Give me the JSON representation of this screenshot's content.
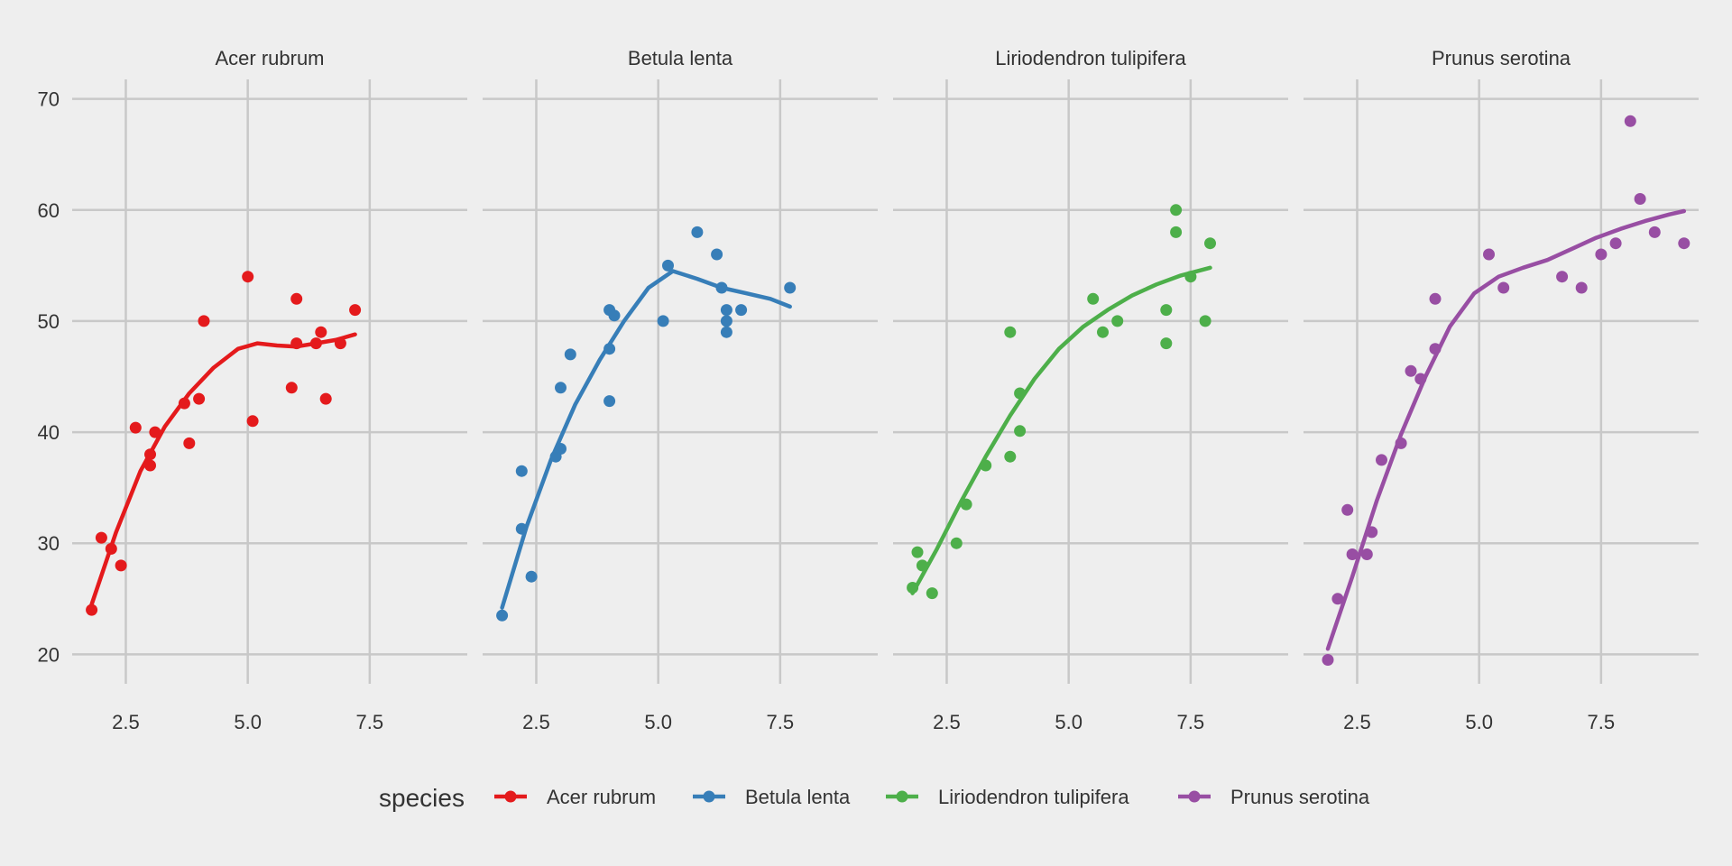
{
  "chart_data": {
    "type": "scatter",
    "facet_by": "species",
    "ylim": [
      18,
      72
    ],
    "xlim": [
      1.4,
      9.5
    ],
    "x_ticks": [
      "2.5",
      "5.0",
      "7.5"
    ],
    "y_ticks": [
      "20",
      "30",
      "40",
      "50",
      "60",
      "70"
    ],
    "grid": true,
    "legend": {
      "title": "species",
      "position": "bottom"
    },
    "series": [
      {
        "name": "Acer rubrum",
        "color": "#e41a1c",
        "points": [
          [
            1.8,
            24
          ],
          [
            2.0,
            30.5
          ],
          [
            2.2,
            29.5
          ],
          [
            2.4,
            28
          ],
          [
            2.7,
            40.4
          ],
          [
            3.0,
            38
          ],
          [
            3.0,
            37
          ],
          [
            3.1,
            40
          ],
          [
            3.7,
            42.6
          ],
          [
            3.8,
            39
          ],
          [
            4.0,
            43
          ],
          [
            4.1,
            50
          ],
          [
            5.0,
            54
          ],
          [
            5.1,
            41
          ],
          [
            5.9,
            44
          ],
          [
            6.0,
            48
          ],
          [
            6.0,
            52
          ],
          [
            6.4,
            48
          ],
          [
            6.5,
            49
          ],
          [
            6.6,
            43
          ],
          [
            6.9,
            48
          ],
          [
            7.2,
            51
          ]
        ],
        "trend": [
          [
            1.8,
            24.5
          ],
          [
            2.3,
            31
          ],
          [
            2.8,
            36.5
          ],
          [
            3.3,
            40.5
          ],
          [
            3.8,
            43.5
          ],
          [
            4.3,
            45.8
          ],
          [
            4.8,
            47.5
          ],
          [
            5.2,
            48
          ],
          [
            5.6,
            47.8
          ],
          [
            6.0,
            47.7
          ],
          [
            6.4,
            48
          ],
          [
            6.8,
            48.3
          ],
          [
            7.2,
            48.8
          ]
        ]
      },
      {
        "name": "Betula lenta",
        "color": "#377eb8",
        "points": [
          [
            1.8,
            23.5
          ],
          [
            2.2,
            36.5
          ],
          [
            2.2,
            31.3
          ],
          [
            2.4,
            27
          ],
          [
            2.9,
            37.8
          ],
          [
            3.0,
            38.5
          ],
          [
            3.0,
            44
          ],
          [
            3.2,
            47
          ],
          [
            4.0,
            51
          ],
          [
            4.0,
            47.5
          ],
          [
            4.0,
            42.8
          ],
          [
            4.1,
            50.5
          ],
          [
            5.1,
            50
          ],
          [
            5.2,
            55
          ],
          [
            5.8,
            58
          ],
          [
            6.2,
            56
          ],
          [
            6.3,
            53
          ],
          [
            6.4,
            51
          ],
          [
            6.4,
            50
          ],
          [
            6.4,
            49
          ],
          [
            6.7,
            51
          ],
          [
            7.7,
            53
          ]
        ],
        "trend": [
          [
            1.8,
            24.2
          ],
          [
            2.3,
            31.5
          ],
          [
            2.8,
            37.5
          ],
          [
            3.3,
            42.5
          ],
          [
            3.8,
            46.5
          ],
          [
            4.3,
            50
          ],
          [
            4.8,
            53
          ],
          [
            5.3,
            54.5
          ],
          [
            5.8,
            53.8
          ],
          [
            6.3,
            53
          ],
          [
            6.8,
            52.5
          ],
          [
            7.3,
            52
          ],
          [
            7.7,
            51.3
          ]
        ]
      },
      {
        "name": "Liriodendron tulipifera",
        "color": "#4daf4a",
        "points": [
          [
            1.8,
            26
          ],
          [
            1.9,
            29.2
          ],
          [
            2.0,
            28
          ],
          [
            2.2,
            25.5
          ],
          [
            2.7,
            30
          ],
          [
            2.9,
            33.5
          ],
          [
            3.3,
            37
          ],
          [
            3.8,
            37.8
          ],
          [
            3.8,
            49
          ],
          [
            4.0,
            43.5
          ],
          [
            4.0,
            40.1
          ],
          [
            5.5,
            52
          ],
          [
            5.7,
            49
          ],
          [
            6.0,
            50
          ],
          [
            7.0,
            48
          ],
          [
            7.0,
            51
          ],
          [
            7.2,
            58
          ],
          [
            7.2,
            60
          ],
          [
            7.5,
            54
          ],
          [
            7.8,
            50
          ],
          [
            7.9,
            57
          ]
        ],
        "trend": [
          [
            1.8,
            25.5
          ],
          [
            2.3,
            29.5
          ],
          [
            2.8,
            33.8
          ],
          [
            3.3,
            37.8
          ],
          [
            3.8,
            41.5
          ],
          [
            4.3,
            44.8
          ],
          [
            4.8,
            47.5
          ],
          [
            5.3,
            49.5
          ],
          [
            5.8,
            51
          ],
          [
            6.3,
            52.3
          ],
          [
            6.8,
            53.3
          ],
          [
            7.3,
            54.1
          ],
          [
            7.9,
            54.8
          ]
        ]
      },
      {
        "name": "Prunus serotina",
        "color": "#984ea3",
        "points": [
          [
            1.9,
            19.5
          ],
          [
            2.1,
            25
          ],
          [
            2.3,
            33
          ],
          [
            2.4,
            29
          ],
          [
            2.7,
            29
          ],
          [
            2.8,
            31
          ],
          [
            3.0,
            37.5
          ],
          [
            3.4,
            39
          ],
          [
            3.6,
            45.5
          ],
          [
            3.8,
            44.8
          ],
          [
            4.1,
            47.5
          ],
          [
            4.1,
            52
          ],
          [
            5.2,
            56
          ],
          [
            5.5,
            53
          ],
          [
            6.7,
            54
          ],
          [
            7.1,
            53
          ],
          [
            7.5,
            56
          ],
          [
            7.8,
            57
          ],
          [
            8.1,
            68
          ],
          [
            8.3,
            61
          ],
          [
            8.6,
            58
          ],
          [
            9.2,
            57
          ]
        ],
        "trend": [
          [
            1.9,
            20.5
          ],
          [
            2.4,
            27
          ],
          [
            2.9,
            33.8
          ],
          [
            3.4,
            39.8
          ],
          [
            3.9,
            45
          ],
          [
            4.4,
            49.5
          ],
          [
            4.9,
            52.5
          ],
          [
            5.4,
            54
          ],
          [
            5.9,
            54.8
          ],
          [
            6.4,
            55.5
          ],
          [
            6.9,
            56.5
          ],
          [
            7.4,
            57.5
          ],
          [
            7.9,
            58.3
          ],
          [
            8.4,
            59
          ],
          [
            8.9,
            59.6
          ],
          [
            9.2,
            59.9
          ]
        ]
      }
    ]
  }
}
